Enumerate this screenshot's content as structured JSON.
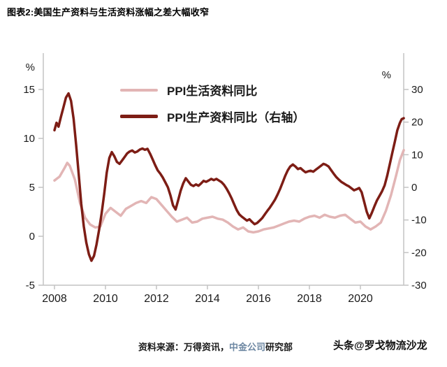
{
  "title": "图表2:美国生产资料与生活资料涨幅之差大幅收窄",
  "chart_data": {
    "type": "line",
    "title": "图表2:美国生产资料与生活资料涨幅之差大幅收窄",
    "grid": false,
    "legend_position": "top-center-inside",
    "x_axis": {
      "range": [
        2007.55,
        2021.9
      ],
      "ticks": [
        2008,
        2010,
        2012,
        2014,
        2016,
        2018,
        2020
      ]
    },
    "left_axis": {
      "label": "%",
      "range": [
        -5,
        15
      ],
      "ticks": [
        -5,
        0,
        5,
        10,
        15
      ]
    },
    "right_axis": {
      "label": "%",
      "range": [
        -30,
        30
      ],
      "ticks": [
        -30,
        -20,
        -10,
        0,
        10,
        20,
        30
      ]
    },
    "series": [
      {
        "name": "PPI生活资料同比",
        "axis": "left",
        "color": "#e2b5b5",
        "stroke_width": 3.5,
        "points": [
          [
            2008.0,
            5.7
          ],
          [
            2008.2,
            6.1
          ],
          [
            2008.4,
            7.0
          ],
          [
            2008.5,
            7.5
          ],
          [
            2008.6,
            7.2
          ],
          [
            2008.8,
            5.8
          ],
          [
            2009.0,
            3.4
          ],
          [
            2009.2,
            1.9
          ],
          [
            2009.4,
            1.2
          ],
          [
            2009.6,
            0.9
          ],
          [
            2009.8,
            1.0
          ],
          [
            2010.0,
            2.3
          ],
          [
            2010.2,
            2.9
          ],
          [
            2010.4,
            2.5
          ],
          [
            2010.6,
            2.1
          ],
          [
            2010.8,
            2.8
          ],
          [
            2011.0,
            3.1
          ],
          [
            2011.2,
            3.4
          ],
          [
            2011.4,
            3.6
          ],
          [
            2011.6,
            3.4
          ],
          [
            2011.8,
            4.0
          ],
          [
            2012.0,
            3.8
          ],
          [
            2012.2,
            3.2
          ],
          [
            2012.4,
            2.6
          ],
          [
            2012.6,
            2.0
          ],
          [
            2012.8,
            1.5
          ],
          [
            2013.0,
            1.7
          ],
          [
            2013.2,
            1.9
          ],
          [
            2013.4,
            1.4
          ],
          [
            2013.6,
            1.5
          ],
          [
            2013.8,
            1.8
          ],
          [
            2014.0,
            1.9
          ],
          [
            2014.2,
            2.0
          ],
          [
            2014.4,
            1.8
          ],
          [
            2014.6,
            1.7
          ],
          [
            2014.8,
            1.4
          ],
          [
            2015.0,
            1.0
          ],
          [
            2015.2,
            0.7
          ],
          [
            2015.4,
            0.9
          ],
          [
            2015.6,
            0.5
          ],
          [
            2015.8,
            0.4
          ],
          [
            2016.0,
            0.5
          ],
          [
            2016.2,
            0.7
          ],
          [
            2016.4,
            0.8
          ],
          [
            2016.6,
            0.9
          ],
          [
            2016.8,
            1.1
          ],
          [
            2017.0,
            1.3
          ],
          [
            2017.2,
            1.5
          ],
          [
            2017.4,
            1.6
          ],
          [
            2017.6,
            1.5
          ],
          [
            2017.8,
            1.8
          ],
          [
            2018.0,
            2.0
          ],
          [
            2018.2,
            2.1
          ],
          [
            2018.4,
            1.9
          ],
          [
            2018.6,
            2.2
          ],
          [
            2018.8,
            2.0
          ],
          [
            2019.0,
            1.9
          ],
          [
            2019.2,
            2.1
          ],
          [
            2019.4,
            2.2
          ],
          [
            2019.6,
            1.8
          ],
          [
            2019.8,
            1.4
          ],
          [
            2020.0,
            1.5
          ],
          [
            2020.2,
            1.0
          ],
          [
            2020.4,
            0.7
          ],
          [
            2020.6,
            1.0
          ],
          [
            2020.8,
            1.4
          ],
          [
            2021.0,
            2.6
          ],
          [
            2021.2,
            4.2
          ],
          [
            2021.4,
            6.2
          ],
          [
            2021.55,
            7.8
          ],
          [
            2021.7,
            8.8
          ]
        ]
      },
      {
        "name": "PPI生产资料同比（右轴）",
        "axis": "right",
        "color": "#7d1d15",
        "stroke_width": 3.5,
        "points": [
          [
            2008.0,
            17.5
          ],
          [
            2008.08,
            19.8
          ],
          [
            2008.16,
            18.6
          ],
          [
            2008.25,
            21.5
          ],
          [
            2008.35,
            24.5
          ],
          [
            2008.45,
            27.5
          ],
          [
            2008.55,
            28.8
          ],
          [
            2008.65,
            26.5
          ],
          [
            2008.75,
            21.0
          ],
          [
            2008.85,
            13.0
          ],
          [
            2008.95,
            4.0
          ],
          [
            2009.05,
            -5.0
          ],
          [
            2009.15,
            -12.0
          ],
          [
            2009.25,
            -17.0
          ],
          [
            2009.35,
            -20.5
          ],
          [
            2009.45,
            -22.5
          ],
          [
            2009.55,
            -21.0
          ],
          [
            2009.65,
            -17.5
          ],
          [
            2009.75,
            -13.0
          ],
          [
            2009.85,
            -8.0
          ],
          [
            2009.95,
            -2.0
          ],
          [
            2010.05,
            4.5
          ],
          [
            2010.15,
            9.0
          ],
          [
            2010.25,
            10.8
          ],
          [
            2010.35,
            9.5
          ],
          [
            2010.45,
            7.8
          ],
          [
            2010.55,
            7.2
          ],
          [
            2010.65,
            8.2
          ],
          [
            2010.75,
            9.3
          ],
          [
            2010.85,
            10.4
          ],
          [
            2010.95,
            11.0
          ],
          [
            2011.05,
            11.3
          ],
          [
            2011.15,
            10.7
          ],
          [
            2011.25,
            11.0
          ],
          [
            2011.35,
            11.6
          ],
          [
            2011.45,
            11.9
          ],
          [
            2011.55,
            11.5
          ],
          [
            2011.65,
            11.8
          ],
          [
            2011.75,
            10.3
          ],
          [
            2011.85,
            8.6
          ],
          [
            2011.95,
            6.8
          ],
          [
            2012.05,
            5.2
          ],
          [
            2012.15,
            4.2
          ],
          [
            2012.25,
            3.0
          ],
          [
            2012.35,
            1.5
          ],
          [
            2012.45,
            0.0
          ],
          [
            2012.55,
            -2.5
          ],
          [
            2012.65,
            -5.5
          ],
          [
            2012.75,
            -6.8
          ],
          [
            2012.85,
            -4.0
          ],
          [
            2012.95,
            -1.0
          ],
          [
            2013.05,
            1.2
          ],
          [
            2013.15,
            2.8
          ],
          [
            2013.25,
            1.8
          ],
          [
            2013.35,
            0.8
          ],
          [
            2013.45,
            0.4
          ],
          [
            2013.55,
            0.9
          ],
          [
            2013.65,
            0.5
          ],
          [
            2013.75,
            1.2
          ],
          [
            2013.85,
            2.0
          ],
          [
            2013.95,
            1.7
          ],
          [
            2014.05,
            2.1
          ],
          [
            2014.15,
            2.6
          ],
          [
            2014.25,
            2.2
          ],
          [
            2014.35,
            2.6
          ],
          [
            2014.45,
            2.1
          ],
          [
            2014.55,
            1.6
          ],
          [
            2014.65,
            0.8
          ],
          [
            2014.75,
            -0.4
          ],
          [
            2014.85,
            -1.8
          ],
          [
            2014.95,
            -3.4
          ],
          [
            2015.05,
            -5.2
          ],
          [
            2015.15,
            -7.0
          ],
          [
            2015.25,
            -8.3
          ],
          [
            2015.35,
            -9.0
          ],
          [
            2015.45,
            -9.6
          ],
          [
            2015.55,
            -10.2
          ],
          [
            2015.65,
            -9.8
          ],
          [
            2015.75,
            -10.6
          ],
          [
            2015.85,
            -11.3
          ],
          [
            2015.95,
            -10.9
          ],
          [
            2016.05,
            -10.2
          ],
          [
            2016.15,
            -9.4
          ],
          [
            2016.25,
            -8.3
          ],
          [
            2016.35,
            -7.2
          ],
          [
            2016.45,
            -6.2
          ],
          [
            2016.55,
            -5.0
          ],
          [
            2016.65,
            -3.8
          ],
          [
            2016.75,
            -2.2
          ],
          [
            2016.85,
            -0.5
          ],
          [
            2016.95,
            1.5
          ],
          [
            2017.05,
            3.5
          ],
          [
            2017.15,
            5.2
          ],
          [
            2017.25,
            6.4
          ],
          [
            2017.35,
            7.0
          ],
          [
            2017.45,
            6.4
          ],
          [
            2017.55,
            5.6
          ],
          [
            2017.65,
            5.9
          ],
          [
            2017.75,
            5.2
          ],
          [
            2017.85,
            4.6
          ],
          [
            2017.95,
            4.9
          ],
          [
            2018.05,
            5.1
          ],
          [
            2018.15,
            4.8
          ],
          [
            2018.25,
            5.4
          ],
          [
            2018.35,
            6.0
          ],
          [
            2018.45,
            6.6
          ],
          [
            2018.55,
            7.2
          ],
          [
            2018.65,
            6.9
          ],
          [
            2018.75,
            6.4
          ],
          [
            2018.85,
            5.3
          ],
          [
            2018.95,
            4.2
          ],
          [
            2019.05,
            3.2
          ],
          [
            2019.15,
            2.4
          ],
          [
            2019.25,
            1.7
          ],
          [
            2019.35,
            1.2
          ],
          [
            2019.45,
            0.7
          ],
          [
            2019.55,
            0.3
          ],
          [
            2019.65,
            -0.3
          ],
          [
            2019.75,
            -0.9
          ],
          [
            2019.85,
            -0.6
          ],
          [
            2019.95,
            -0.2
          ],
          [
            2020.05,
            -1.5
          ],
          [
            2020.15,
            -4.5
          ],
          [
            2020.25,
            -7.5
          ],
          [
            2020.35,
            -9.5
          ],
          [
            2020.45,
            -7.8
          ],
          [
            2020.55,
            -5.8
          ],
          [
            2020.65,
            -4.0
          ],
          [
            2020.75,
            -2.6
          ],
          [
            2020.85,
            -1.2
          ],
          [
            2020.95,
            0.6
          ],
          [
            2021.05,
            3.5
          ],
          [
            2021.15,
            7.0
          ],
          [
            2021.25,
            10.5
          ],
          [
            2021.35,
            14.0
          ],
          [
            2021.45,
            17.5
          ],
          [
            2021.55,
            19.8
          ],
          [
            2021.62,
            20.9
          ],
          [
            2021.7,
            21.2
          ]
        ]
      }
    ]
  },
  "source": {
    "prefix": "资料来源：万得资讯，",
    "highlight": "中金公司",
    "suffix": "研究部",
    "highlight_color": "#6e88a3"
  },
  "watermark": "头条@罗戈物流沙龙",
  "colors": {
    "axis": "#c3c3c3",
    "tick_text": "#1a1a1a",
    "background": "#ffffff"
  }
}
